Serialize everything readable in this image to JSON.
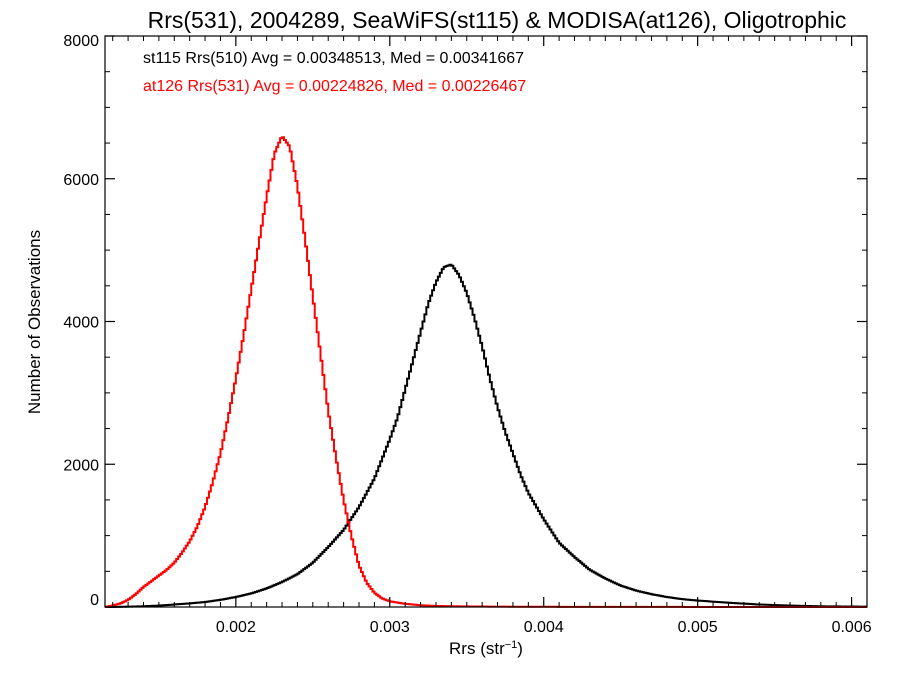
{
  "chart_data": {
    "type": "line",
    "title": "Rrs(531), 2004289, SeaWiFS(st115) & MODISA(at126), Oligotrophic",
    "xlabel": "Rrs (str",
    "xlabel_sup": "−1",
    "xlabel_close": ")",
    "ylabel": "Number of Observations",
    "xlim": [
      0.00115,
      0.0061
    ],
    "ylim": [
      0,
      8000
    ],
    "grid": false,
    "x_ticks": [
      0.002,
      0.003,
      0.004,
      0.005,
      0.006
    ],
    "x_tick_labels": [
      "0.002",
      "0.003",
      "0.004",
      "0.005",
      "0.006"
    ],
    "y_ticks": [
      0,
      2000,
      4000,
      6000,
      8000
    ],
    "y_tick_labels": [
      "0",
      "2000",
      "4000",
      "6000",
      "8000"
    ],
    "annotations": [
      {
        "text": "st115 Rrs(510) Avg = 0.00348513, Med = 0.00341667",
        "color": "#000000"
      },
      {
        "text": "at126 Rrs(531) Avg = 0.00224826, Med = 0.00226467",
        "color": "#ff0000"
      }
    ],
    "series": [
      {
        "color": "#000000",
        "step": true,
        "x": [
          0.00115,
          0.0012,
          0.0013,
          0.0014,
          0.0015,
          0.0016,
          0.0017,
          0.0018,
          0.0019,
          0.002,
          0.0021,
          0.0022,
          0.0023,
          0.0024,
          0.0025,
          0.0026,
          0.0027,
          0.0028,
          0.0029,
          0.003,
          0.00305,
          0.0031,
          0.00315,
          0.0032,
          0.00325,
          0.0033,
          0.00335,
          0.0034,
          0.00345,
          0.0035,
          0.00355,
          0.0036,
          0.00365,
          0.0037,
          0.00375,
          0.0038,
          0.00385,
          0.0039,
          0.004,
          0.0041,
          0.0042,
          0.0043,
          0.0044,
          0.0045,
          0.0046,
          0.0047,
          0.0048,
          0.0049,
          0.005,
          0.0052,
          0.0054,
          0.0056,
          0.0058,
          0.0061
        ],
        "y": [
          0,
          0,
          5,
          10,
          20,
          35,
          50,
          70,
          100,
          140,
          190,
          260,
          350,
          460,
          620,
          840,
          1080,
          1400,
          1800,
          2350,
          2650,
          3050,
          3450,
          3850,
          4250,
          4550,
          4760,
          4800,
          4650,
          4400,
          4050,
          3650,
          3200,
          2800,
          2450,
          2150,
          1850,
          1600,
          1230,
          900,
          700,
          520,
          400,
          300,
          230,
          180,
          140,
          110,
          90,
          60,
          35,
          20,
          10,
          5
        ]
      },
      {
        "color": "#ff0000",
        "step": true,
        "x": [
          0.00115,
          0.0012,
          0.00125,
          0.0013,
          0.00135,
          0.0014,
          0.00145,
          0.0015,
          0.00155,
          0.0016,
          0.00165,
          0.0017,
          0.00175,
          0.0018,
          0.00185,
          0.0019,
          0.00195,
          0.002,
          0.00205,
          0.0021,
          0.00215,
          0.0022,
          0.00225,
          0.0023,
          0.00235,
          0.0024,
          0.00245,
          0.0025,
          0.00255,
          0.0026,
          0.00265,
          0.0027,
          0.00275,
          0.0028,
          0.00285,
          0.0029,
          0.00295,
          0.003,
          0.0031,
          0.0032,
          0.0033,
          0.0035,
          0.0038,
          0.0042,
          0.0048,
          0.0061
        ],
        "y": [
          0,
          20,
          50,
          100,
          180,
          280,
          360,
          440,
          520,
          620,
          760,
          920,
          1130,
          1400,
          1750,
          2150,
          2650,
          3200,
          3800,
          4450,
          5100,
          5750,
          6350,
          6600,
          6450,
          5900,
          5150,
          4350,
          3550,
          2750,
          2100,
          1500,
          1000,
          580,
          340,
          200,
          120,
          80,
          45,
          25,
          15,
          8,
          4,
          2,
          1,
          0
        ]
      }
    ]
  }
}
